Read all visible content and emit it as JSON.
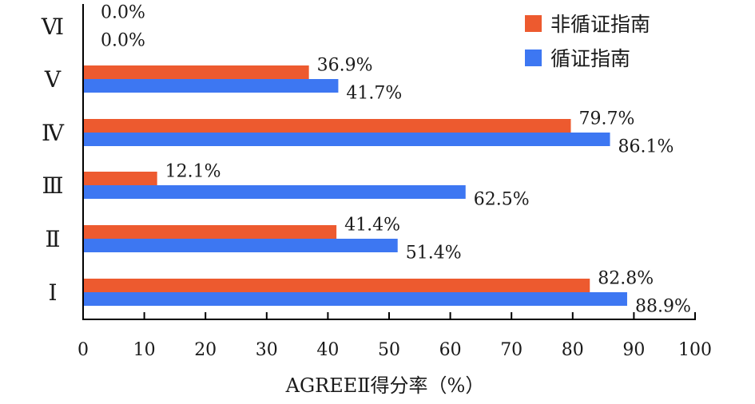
{
  "chart_data": {
    "type": "bar",
    "orientation": "horizontal",
    "categories": [
      "Ⅰ",
      "Ⅱ",
      "Ⅲ",
      "Ⅳ",
      "Ⅴ",
      "Ⅵ"
    ],
    "series": [
      {
        "name": "非循证指南",
        "color": "#ED5A2F",
        "values": [
          82.8,
          41.4,
          12.1,
          79.7,
          36.9,
          0.0
        ],
        "labels": [
          "82.8%",
          "41.4%",
          "12.1%",
          "79.7%",
          "36.9%",
          "0.0%"
        ]
      },
      {
        "name": "循证指南",
        "color": "#3D77F2",
        "values": [
          88.9,
          51.4,
          62.5,
          86.1,
          41.7,
          0.0
        ],
        "labels": [
          "88.9%",
          "51.4%",
          "62.5%",
          "86.1%",
          "41.7%",
          "0.0%"
        ]
      }
    ],
    "xlabel": "AGREEⅡ得分率（%）",
    "xlim": [
      0,
      100
    ],
    "xticks": [
      "0",
      "10",
      "20",
      "30",
      "40",
      "50",
      "60",
      "70",
      "80",
      "90",
      "100"
    ],
    "legend_position": "top-right",
    "grid": false
  }
}
